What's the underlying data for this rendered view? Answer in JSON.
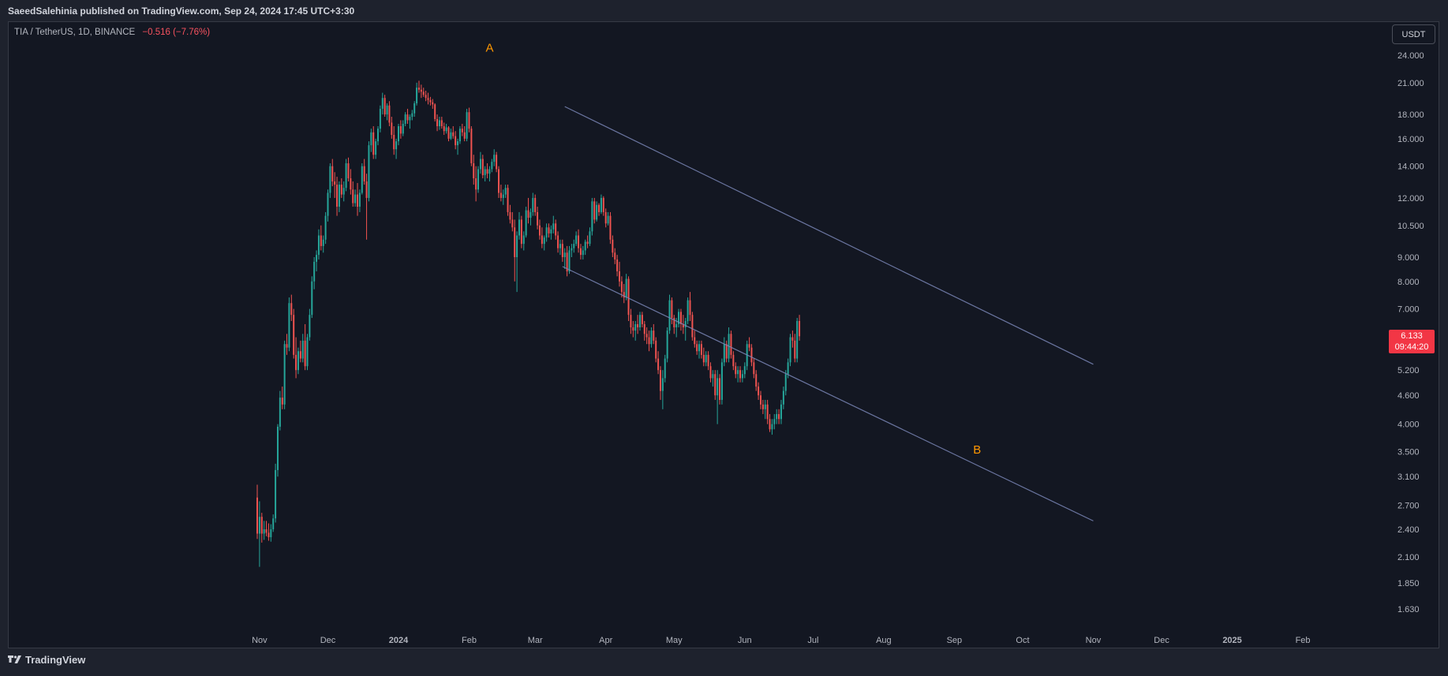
{
  "header": {
    "publisher_line": "SaeedSalehinia published on TradingView.com, Sep 24, 2024 17:45 UTC+3:30"
  },
  "symbol": {
    "label": "TIA / TetherUS, 1D, BINANCE",
    "change": "−0.516 (−7.76%)"
  },
  "currency_button": "USDT",
  "price_label": {
    "price": "6.133",
    "countdown": "09:44:20"
  },
  "footer": {
    "logo_text": "TradingView"
  },
  "colors": {
    "background": "#131722",
    "up": "#26a69a",
    "down": "#ef5350",
    "channel": "#7b87b8",
    "annotation": "#ff9800",
    "price_tag": "#f23645"
  },
  "chart_data": {
    "type": "candlestick",
    "y_scale": "log",
    "ylim": [
      1.5,
      26
    ],
    "y_ticks": [
      "24.000",
      "21.000",
      "18.000",
      "16.000",
      "14.000",
      "12.000",
      "10.500",
      "9.000",
      "8.000",
      "7.000",
      "5.200",
      "4.600",
      "4.000",
      "3.500",
      "3.100",
      "2.700",
      "2.400",
      "2.100",
      "1.850",
      "1.630"
    ],
    "x_ticks": [
      "Nov",
      "Dec",
      "2024",
      "Feb",
      "Mar",
      "Apr",
      "May",
      "Jun",
      "Jul",
      "Aug",
      "Sep",
      "Oct",
      "Nov",
      "Dec",
      "2025",
      "Feb"
    ],
    "x_range": [
      "2023-10-31",
      "2025-02-28"
    ],
    "annotations": [
      {
        "label": "A",
        "date": "2024-02-10",
        "price": 25.0
      },
      {
        "label": "B",
        "date": "2024-09-11",
        "price": 3.55
      }
    ],
    "channel_lines": [
      {
        "name": "upper",
        "from": [
          "2024-03-14",
          18.7
        ],
        "to": [
          "2024-11-01",
          5.35
        ]
      },
      {
        "name": "lower",
        "from": [
          "2024-03-13",
          8.6
        ],
        "to": [
          "2024-11-01",
          2.5
        ]
      }
    ],
    "last_close": 6.133,
    "ohlc_start": "2023-10-31",
    "ohlc": [
      [
        2.8,
        2.98,
        2.29,
        2.35
      ],
      [
        2.35,
        2.75,
        2.0,
        2.55
      ],
      [
        2.55,
        2.6,
        2.25,
        2.35
      ],
      [
        2.35,
        2.5,
        2.28,
        2.4
      ],
      [
        2.4,
        2.5,
        2.32,
        2.36
      ],
      [
        2.36,
        2.47,
        2.27,
        2.31
      ],
      [
        2.31,
        2.46,
        2.26,
        2.4
      ],
      [
        2.4,
        2.58,
        2.37,
        2.53
      ],
      [
        2.53,
        3.3,
        2.48,
        3.2
      ],
      [
        3.2,
        4.0,
        3.1,
        3.95
      ],
      [
        3.95,
        4.7,
        3.88,
        4.55
      ],
      [
        4.55,
        4.8,
        4.3,
        4.4
      ],
      [
        4.4,
        6.0,
        4.3,
        5.9
      ],
      [
        5.9,
        6.2,
        5.6,
        5.8
      ],
      [
        5.8,
        7.4,
        5.7,
        7.2
      ],
      [
        7.2,
        7.5,
        6.6,
        6.8
      ],
      [
        6.8,
        7.0,
        5.5,
        5.6
      ],
      [
        5.6,
        6.1,
        5.0,
        5.2
      ],
      [
        5.2,
        5.8,
        5.1,
        5.7
      ],
      [
        5.7,
        6.0,
        5.4,
        5.5
      ],
      [
        5.5,
        6.2,
        5.4,
        6.0
      ],
      [
        6.0,
        6.5,
        5.2,
        5.3
      ],
      [
        5.3,
        6.2,
        5.2,
        6.1
      ],
      [
        6.1,
        7.0,
        6.0,
        6.8
      ],
      [
        6.8,
        8.2,
        6.7,
        8.0
      ],
      [
        8.0,
        9.0,
        7.7,
        8.8
      ],
      [
        8.8,
        9.3,
        8.4,
        9.1
      ],
      [
        9.1,
        10.3,
        8.9,
        10.0
      ],
      [
        10.0,
        10.5,
        9.3,
        9.5
      ],
      [
        9.5,
        10.0,
        9.2,
        9.8
      ],
      [
        9.8,
        11.2,
        9.6,
        11.0
      ],
      [
        11.0,
        12.5,
        10.7,
        12.3
      ],
      [
        12.3,
        14.2,
        12.0,
        14.0
      ],
      [
        14.0,
        14.5,
        12.7,
        13.0
      ],
      [
        13.0,
        13.6,
        12.0,
        12.8
      ],
      [
        12.8,
        13.3,
        11.0,
        11.5
      ],
      [
        11.5,
        13.0,
        11.2,
        12.8
      ],
      [
        12.8,
        13.2,
        12.0,
        12.2
      ],
      [
        12.2,
        13.0,
        11.8,
        12.6
      ],
      [
        12.6,
        14.5,
        12.4,
        14.2
      ],
      [
        14.2,
        14.6,
        13.0,
        13.2
      ],
      [
        13.2,
        13.8,
        12.2,
        12.5
      ],
      [
        12.5,
        13.0,
        11.5,
        11.7
      ],
      [
        11.7,
        12.5,
        11.5,
        12.2
      ],
      [
        12.2,
        12.9,
        11.0,
        11.5
      ],
      [
        11.5,
        12.5,
        11.2,
        12.3
      ],
      [
        12.3,
        14.2,
        12.2,
        14.0
      ],
      [
        14.0,
        14.5,
        12.8,
        13.0
      ],
      [
        13.0,
        13.5,
        9.8,
        12.0
      ],
      [
        12.0,
        15.8,
        11.8,
        15.5
      ],
      [
        15.5,
        16.8,
        15.0,
        16.5
      ],
      [
        16.5,
        17.0,
        14.5,
        14.8
      ],
      [
        14.8,
        16.0,
        14.5,
        15.8
      ],
      [
        15.8,
        17.0,
        15.5,
        16.8
      ],
      [
        16.8,
        18.8,
        16.5,
        18.5
      ],
      [
        18.5,
        20.0,
        18.0,
        19.5
      ],
      [
        19.5,
        19.8,
        17.8,
        18.0
      ],
      [
        18.0,
        19.0,
        17.5,
        18.8
      ],
      [
        18.8,
        19.2,
        17.0,
        17.3
      ],
      [
        17.3,
        17.8,
        16.0,
        16.3
      ],
      [
        16.3,
        17.0,
        14.8,
        15.2
      ],
      [
        15.2,
        16.0,
        14.5,
        15.8
      ],
      [
        15.8,
        17.2,
        15.5,
        17.0
      ],
      [
        17.0,
        17.5,
        16.0,
        16.4
      ],
      [
        16.4,
        17.5,
        16.2,
        17.2
      ],
      [
        17.2,
        18.2,
        17.0,
        18.0
      ],
      [
        18.0,
        18.5,
        17.2,
        17.5
      ],
      [
        17.5,
        18.0,
        16.8,
        17.8
      ],
      [
        17.8,
        18.4,
        17.5,
        18.1
      ],
      [
        18.1,
        19.2,
        17.8,
        19.0
      ],
      [
        19.0,
        21.0,
        18.8,
        20.5
      ],
      [
        20.5,
        21.2,
        20.0,
        20.3
      ],
      [
        20.3,
        20.8,
        19.5,
        20.1
      ],
      [
        20.1,
        20.5,
        19.6,
        19.8
      ],
      [
        19.8,
        20.2,
        19.2,
        19.5
      ],
      [
        19.5,
        20.0,
        18.9,
        19.3
      ],
      [
        19.3,
        19.6,
        18.8,
        19.1
      ],
      [
        19.1,
        19.4,
        18.5,
        18.9
      ],
      [
        18.9,
        19.0,
        17.4,
        17.6
      ],
      [
        17.6,
        18.0,
        16.6,
        17.0
      ],
      [
        17.0,
        17.8,
        16.7,
        17.5
      ],
      [
        17.5,
        17.8,
        16.8,
        17.0
      ],
      [
        17.0,
        17.3,
        16.3,
        16.6
      ],
      [
        16.6,
        17.2,
        16.4,
        16.9
      ],
      [
        16.9,
        17.0,
        15.8,
        16.0
      ],
      [
        16.0,
        16.8,
        15.9,
        16.5
      ],
      [
        16.5,
        17.0,
        16.0,
        16.2
      ],
      [
        16.2,
        16.6,
        15.2,
        15.5
      ],
      [
        15.5,
        16.0,
        14.8,
        15.8
      ],
      [
        15.8,
        17.0,
        15.6,
        16.8
      ],
      [
        16.8,
        17.2,
        16.2,
        16.5
      ],
      [
        16.5,
        17.0,
        15.8,
        16.0
      ],
      [
        16.0,
        18.5,
        15.8,
        18.2
      ],
      [
        18.2,
        18.6,
        16.5,
        16.8
      ],
      [
        16.8,
        17.0,
        14.0,
        14.2
      ],
      [
        14.2,
        14.8,
        12.8,
        13.2
      ],
      [
        13.2,
        14.0,
        11.8,
        12.5
      ],
      [
        12.5,
        14.0,
        12.3,
        13.8
      ],
      [
        13.8,
        15.0,
        13.5,
        14.5
      ],
      [
        14.5,
        14.8,
        13.2,
        13.4
      ],
      [
        13.4,
        14.0,
        13.0,
        13.8
      ],
      [
        13.8,
        14.2,
        13.2,
        13.5
      ],
      [
        13.5,
        14.0,
        13.0,
        13.8
      ],
      [
        13.8,
        14.5,
        13.6,
        14.3
      ],
      [
        14.3,
        15.2,
        14.0,
        14.8
      ],
      [
        14.8,
        15.0,
        13.6,
        13.8
      ],
      [
        13.8,
        14.0,
        12.0,
        12.3
      ],
      [
        12.3,
        12.8,
        11.8,
        12.0
      ],
      [
        12.0,
        12.5,
        11.6,
        12.2
      ],
      [
        12.2,
        12.8,
        12.0,
        12.6
      ],
      [
        12.6,
        12.8,
        11.0,
        11.2
      ],
      [
        11.2,
        11.6,
        10.6,
        10.8
      ],
      [
        10.8,
        11.2,
        10.2,
        10.4
      ],
      [
        10.4,
        10.8,
        8.0,
        9.0
      ],
      [
        9.0,
        10.2,
        7.6,
        10.0
      ],
      [
        10.0,
        11.2,
        9.8,
        10.8
      ],
      [
        10.8,
        11.0,
        9.4,
        9.6
      ],
      [
        9.6,
        10.2,
        9.3,
        10.0
      ],
      [
        10.0,
        11.5,
        9.9,
        11.3
      ],
      [
        11.3,
        12.0,
        10.6,
        10.9
      ],
      [
        10.9,
        11.4,
        10.5,
        11.2
      ],
      [
        11.2,
        12.3,
        11.0,
        12.0
      ],
      [
        12.0,
        12.2,
        11.0,
        11.2
      ],
      [
        11.2,
        11.5,
        10.3,
        10.5
      ],
      [
        10.5,
        10.8,
        9.8,
        10.0
      ],
      [
        10.0,
        10.4,
        9.4,
        9.6
      ],
      [
        9.6,
        10.0,
        9.3,
        9.9
      ],
      [
        9.9,
        10.6,
        9.7,
        10.4
      ],
      [
        10.4,
        10.6,
        9.9,
        10.1
      ],
      [
        10.1,
        10.5,
        9.8,
        10.3
      ],
      [
        10.3,
        11.0,
        10.1,
        10.6
      ],
      [
        10.6,
        10.8,
        9.8,
        10.0
      ],
      [
        10.0,
        10.2,
        9.2,
        9.4
      ],
      [
        9.4,
        9.8,
        9.1,
        9.6
      ],
      [
        9.6,
        9.8,
        8.8,
        9.0
      ],
      [
        9.0,
        9.4,
        8.5,
        9.2
      ],
      [
        9.2,
        9.5,
        8.2,
        8.4
      ],
      [
        8.4,
        9.5,
        8.3,
        9.3
      ],
      [
        9.3,
        9.6,
        9.0,
        9.4
      ],
      [
        9.4,
        9.8,
        9.2,
        9.6
      ],
      [
        9.6,
        10.2,
        9.5,
        10.0
      ],
      [
        10.0,
        10.3,
        9.2,
        9.4
      ],
      [
        9.4,
        9.6,
        8.9,
        9.1
      ],
      [
        9.1,
        9.5,
        8.9,
        9.3
      ],
      [
        9.3,
        9.8,
        9.1,
        9.7
      ],
      [
        9.7,
        10.0,
        9.4,
        9.6
      ],
      [
        9.6,
        10.4,
        9.5,
        10.2
      ],
      [
        10.2,
        12.0,
        10.0,
        11.8
      ],
      [
        11.8,
        12.0,
        10.6,
        10.8
      ],
      [
        10.8,
        11.8,
        10.7,
        11.6
      ],
      [
        11.6,
        11.7,
        11.0,
        11.2
      ],
      [
        11.2,
        12.2,
        11.1,
        12.0
      ],
      [
        12.0,
        12.1,
        11.0,
        11.2
      ],
      [
        11.2,
        11.4,
        10.4,
        10.6
      ],
      [
        10.6,
        11.2,
        10.5,
        11.0
      ],
      [
        11.0,
        11.2,
        9.6,
        9.8
      ],
      [
        9.8,
        10.0,
        9.0,
        9.2
      ],
      [
        9.2,
        9.4,
        8.7,
        8.9
      ],
      [
        8.9,
        9.1,
        8.2,
        8.4
      ],
      [
        8.4,
        8.8,
        7.8,
        8.0
      ],
      [
        8.0,
        8.2,
        7.4,
        7.6
      ],
      [
        7.6,
        7.9,
        7.2,
        7.4
      ],
      [
        7.4,
        8.3,
        7.3,
        8.1
      ],
      [
        8.1,
        8.2,
        6.6,
        6.8
      ],
      [
        6.8,
        7.0,
        6.2,
        6.4
      ],
      [
        6.4,
        6.6,
        6.1,
        6.3
      ],
      [
        6.3,
        6.6,
        6.0,
        6.5
      ],
      [
        6.5,
        6.8,
        6.2,
        6.4
      ],
      [
        6.4,
        6.9,
        6.3,
        6.8
      ],
      [
        6.8,
        6.9,
        6.4,
        6.5
      ],
      [
        6.5,
        6.6,
        6.0,
        6.2
      ],
      [
        6.2,
        6.4,
        5.9,
        6.1
      ],
      [
        6.1,
        6.3,
        5.7,
        5.9
      ],
      [
        5.9,
        6.4,
        5.8,
        6.3
      ],
      [
        6.3,
        6.5,
        5.9,
        6.0
      ],
      [
        6.0,
        6.1,
        5.4,
        5.5
      ],
      [
        5.5,
        5.7,
        5.1,
        5.2
      ],
      [
        5.2,
        5.3,
        4.5,
        4.7
      ],
      [
        4.7,
        5.2,
        4.3,
        5.0
      ],
      [
        5.0,
        5.6,
        4.9,
        5.5
      ],
      [
        5.5,
        6.4,
        5.4,
        6.3
      ],
      [
        6.3,
        7.5,
        6.2,
        7.3
      ],
      [
        7.3,
        7.4,
        6.5,
        6.7
      ],
      [
        6.7,
        6.8,
        6.2,
        6.4
      ],
      [
        6.4,
        6.7,
        6.1,
        6.5
      ],
      [
        6.5,
        7.0,
        6.4,
        6.9
      ],
      [
        6.9,
        7.0,
        6.3,
        6.5
      ],
      [
        6.5,
        6.8,
        6.2,
        6.4
      ],
      [
        6.4,
        6.7,
        6.0,
        6.6
      ],
      [
        6.6,
        7.4,
        6.5,
        7.3
      ],
      [
        7.3,
        7.6,
        6.6,
        6.8
      ],
      [
        6.8,
        6.9,
        6.0,
        6.1
      ],
      [
        6.1,
        6.3,
        5.8,
        5.9
      ],
      [
        5.9,
        6.0,
        5.6,
        5.7
      ],
      [
        5.7,
        6.0,
        5.5,
        5.9
      ],
      [
        5.9,
        6.0,
        5.5,
        5.6
      ],
      [
        5.6,
        5.8,
        5.3,
        5.4
      ],
      [
        5.4,
        5.7,
        5.3,
        5.6
      ],
      [
        5.6,
        5.7,
        5.2,
        5.3
      ],
      [
        5.3,
        5.4,
        4.9,
        5.0
      ],
      [
        5.0,
        5.2,
        4.8,
        5.1
      ],
      [
        5.1,
        5.2,
        4.5,
        4.6
      ],
      [
        4.6,
        5.2,
        4.0,
        5.0
      ],
      [
        5.0,
        5.1,
        4.4,
        4.5
      ],
      [
        4.5,
        5.5,
        4.4,
        5.4
      ],
      [
        5.4,
        6.1,
        5.3,
        5.9
      ],
      [
        5.9,
        6.0,
        5.4,
        5.5
      ],
      [
        5.5,
        6.4,
        5.4,
        6.2
      ],
      [
        6.2,
        6.3,
        5.5,
        5.6
      ],
      [
        5.6,
        5.7,
        5.2,
        5.3
      ],
      [
        5.3,
        5.4,
        5.0,
        5.1
      ],
      [
        5.1,
        5.3,
        4.9,
        5.2
      ],
      [
        5.2,
        5.3,
        4.9,
        5.0
      ],
      [
        5.0,
        5.2,
        4.9,
        5.1
      ],
      [
        5.1,
        5.4,
        5.0,
        5.3
      ],
      [
        5.3,
        6.0,
        5.2,
        5.9
      ],
      [
        5.9,
        6.1,
        5.7,
        5.8
      ],
      [
        5.8,
        5.9,
        5.3,
        5.4
      ],
      [
        5.4,
        5.5,
        5.0,
        5.1
      ],
      [
        5.1,
        5.2,
        4.7,
        4.8
      ],
      [
        4.8,
        4.9,
        4.5,
        4.6
      ],
      [
        4.6,
        4.7,
        4.3,
        4.4
      ],
      [
        4.4,
        4.5,
        4.2,
        4.3
      ],
      [
        4.3,
        4.5,
        4.1,
        4.4
      ],
      [
        4.4,
        4.5,
        4.0,
        4.1
      ],
      [
        4.1,
        4.2,
        3.85,
        3.9
      ],
      [
        3.9,
        4.1,
        3.8,
        4.0
      ],
      [
        4.0,
        4.2,
        3.9,
        4.1
      ],
      [
        4.1,
        4.3,
        4.0,
        4.2
      ],
      [
        4.2,
        4.3,
        4.0,
        4.1
      ],
      [
        4.1,
        4.5,
        4.0,
        4.4
      ],
      [
        4.4,
        4.8,
        4.3,
        4.7
      ],
      [
        4.7,
        5.2,
        4.6,
        5.1
      ],
      [
        5.1,
        5.5,
        5.0,
        5.4
      ],
      [
        5.4,
        6.2,
        5.3,
        6.1
      ],
      [
        6.1,
        6.3,
        5.8,
        6.0
      ],
      [
        6.0,
        6.2,
        5.4,
        5.5
      ],
      [
        5.5,
        6.7,
        5.4,
        6.6
      ],
      [
        6.6,
        6.8,
        6.0,
        6.13
      ]
    ]
  }
}
